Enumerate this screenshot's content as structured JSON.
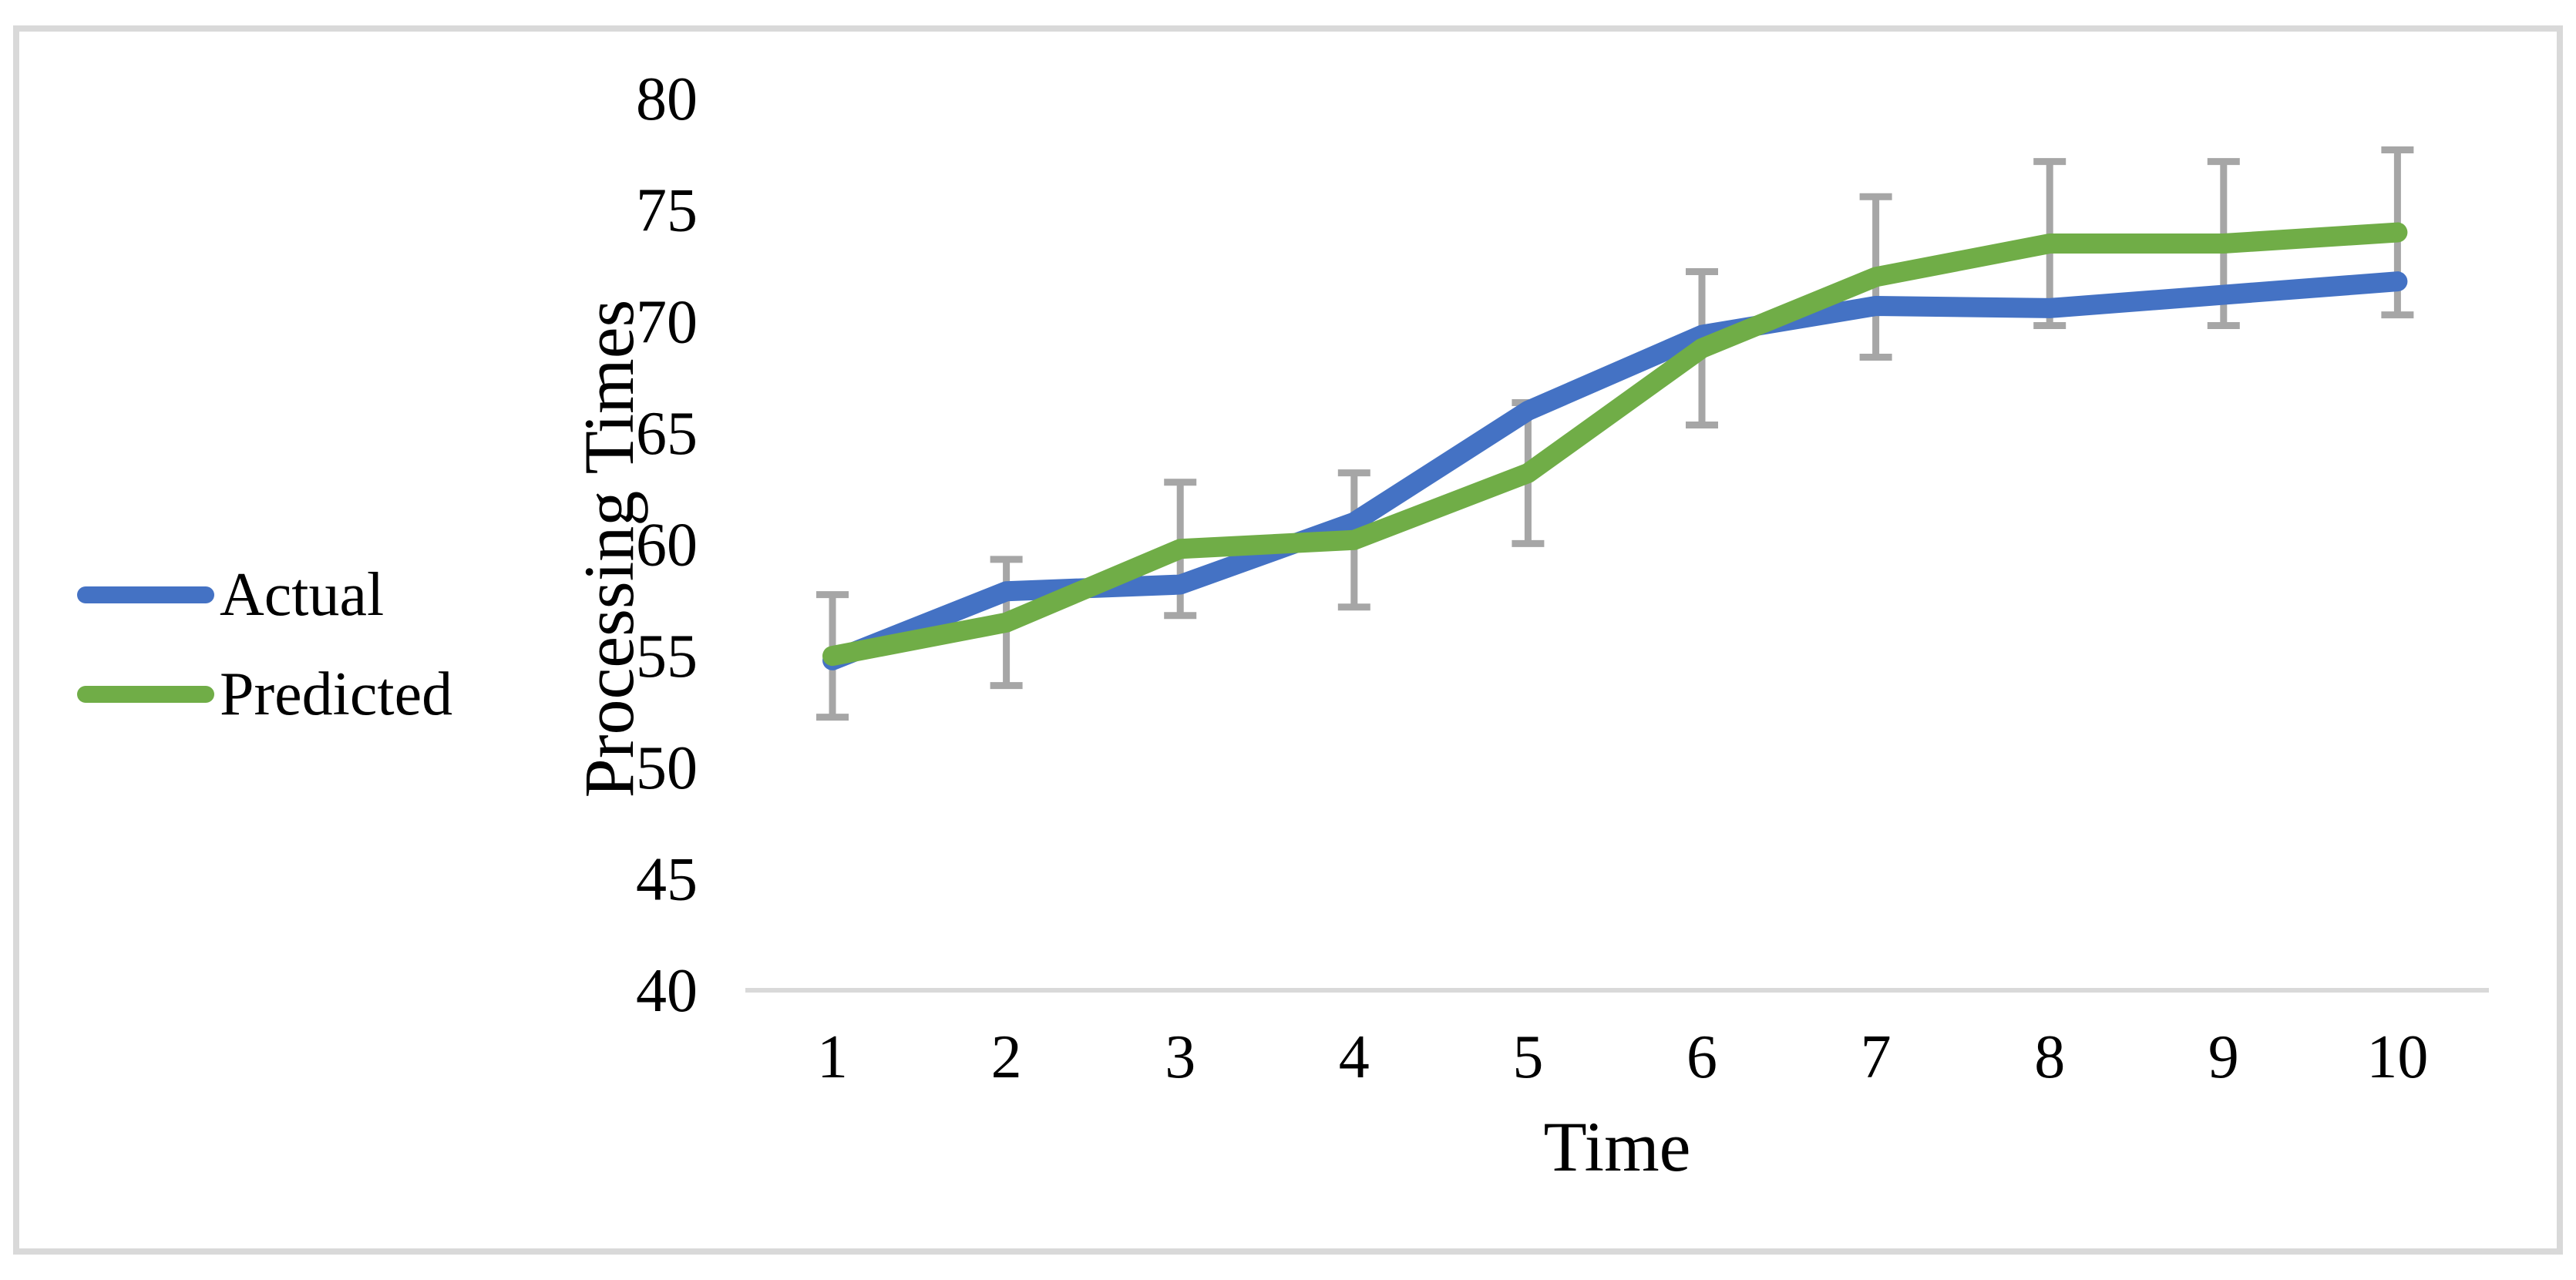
{
  "chart_data": {
    "type": "line",
    "title": "",
    "xlabel": "Time",
    "ylabel": "Processing Times",
    "categories": [
      1,
      2,
      3,
      4,
      5,
      6,
      7,
      8,
      9,
      10
    ],
    "ylim": [
      40,
      80
    ],
    "yticks": [
      80,
      75,
      70,
      65,
      60,
      55,
      50,
      45,
      40
    ],
    "grid": false,
    "legend_position": "left-middle",
    "axis_line_color": "#D9D9D9",
    "error_bar_color": "#A6A6A6",
    "text_color": "#000000",
    "series": [
      {
        "name": "Actual",
        "color": "#4472C4",
        "values": [
          54.8,
          57.9,
          58.2,
          61,
          66,
          69.4,
          70.7,
          70.6,
          71.2,
          71.8
        ]
      },
      {
        "name": "Predicted",
        "color": "#70AD47",
        "values": [
          55,
          56.5,
          59.8,
          60.2,
          63.2,
          68.8,
          72,
          73.5,
          73.5,
          74
        ],
        "error_bars": {
          "type": "percent",
          "value": 5,
          "plus_minus": [
            2.75,
            2.83,
            2.99,
            3.01,
            3.16,
            3.44,
            3.6,
            3.68,
            3.68,
            3.7
          ]
        }
      }
    ]
  }
}
